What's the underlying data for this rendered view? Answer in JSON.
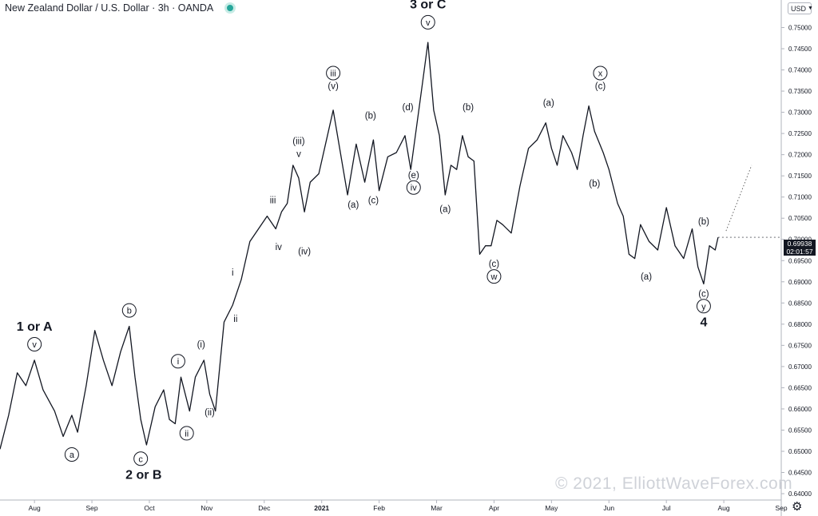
{
  "header": {
    "title": "New Zealand Dollar / U.S. Dollar · 3h · OANDA",
    "status_color": "#26a69a"
  },
  "currency_selector": {
    "value": "USD"
  },
  "price_label": {
    "price": "0.69938",
    "countdown": "02:01:57"
  },
  "settings": {
    "icon": "gear-icon"
  },
  "watermark": "© 2021, ElliottWaveForex.com",
  "chart_data": {
    "type": "line",
    "title": "New Zealand Dollar / U.S. Dollar · 3h · OANDA",
    "xlabel": "",
    "ylabel": "",
    "ylim": [
      0.6385,
      0.7565
    ],
    "xlim": [
      0,
      13.6
    ],
    "grid": false,
    "x_ticks": [
      {
        "label": "Aug",
        "x": 0.6
      },
      {
        "label": "Sep",
        "x": 1.6
      },
      {
        "label": "Oct",
        "x": 2.6
      },
      {
        "label": "Nov",
        "x": 3.6
      },
      {
        "label": "Dec",
        "x": 4.6
      },
      {
        "label": "2021",
        "x": 5.6
      },
      {
        "label": "Feb",
        "x": 6.6
      },
      {
        "label": "Mar",
        "x": 7.6
      },
      {
        "label": "Apr",
        "x": 8.6
      },
      {
        "label": "May",
        "x": 9.6
      },
      {
        "label": "Jun",
        "x": 10.6
      },
      {
        "label": "Jul",
        "x": 11.6
      },
      {
        "label": "Aug",
        "x": 12.6
      },
      {
        "label": "Sep",
        "x": 13.6
      }
    ],
    "y_ticks": [
      "0.64000",
      "0.64500",
      "0.65000",
      "0.65500",
      "0.66000",
      "0.66500",
      "0.67000",
      "0.67500",
      "0.68000",
      "0.68500",
      "0.69000",
      "0.69500",
      "0.70000",
      "0.70500",
      "0.71000",
      "0.71500",
      "0.72000",
      "0.72500",
      "0.73000",
      "0.73500",
      "0.74000",
      "0.74500",
      "0.75000"
    ],
    "series": [
      {
        "color": "#131722",
        "points": [
          [
            0.0,
            0.6505
          ],
          [
            0.15,
            0.6585
          ],
          [
            0.3,
            0.6685
          ],
          [
            0.45,
            0.6655
          ],
          [
            0.6,
            0.6715
          ],
          [
            0.75,
            0.6645
          ],
          [
            0.95,
            0.6595
          ],
          [
            1.1,
            0.6535
          ],
          [
            1.25,
            0.6585
          ],
          [
            1.35,
            0.6545
          ],
          [
            1.5,
            0.6655
          ],
          [
            1.65,
            0.6785
          ],
          [
            1.8,
            0.6715
          ],
          [
            1.95,
            0.6655
          ],
          [
            2.1,
            0.6735
          ],
          [
            2.25,
            0.6795
          ],
          [
            2.35,
            0.6675
          ],
          [
            2.45,
            0.6575
          ],
          [
            2.55,
            0.6515
          ],
          [
            2.7,
            0.6605
          ],
          [
            2.85,
            0.6645
          ],
          [
            2.95,
            0.6575
          ],
          [
            3.05,
            0.6565
          ],
          [
            3.15,
            0.6675
          ],
          [
            3.3,
            0.6595
          ],
          [
            3.4,
            0.6675
          ],
          [
            3.55,
            0.6715
          ],
          [
            3.65,
            0.6635
          ],
          [
            3.75,
            0.6595
          ],
          [
            3.85,
            0.6735
          ],
          [
            3.9,
            0.6805
          ],
          [
            4.05,
            0.6845
          ],
          [
            4.2,
            0.6905
          ],
          [
            4.35,
            0.6995
          ],
          [
            4.5,
            0.7025
          ],
          [
            4.65,
            0.7055
          ],
          [
            4.8,
            0.7025
          ],
          [
            4.9,
            0.7065
          ],
          [
            5.0,
            0.7085
          ],
          [
            5.1,
            0.7175
          ],
          [
            5.2,
            0.7145
          ],
          [
            5.3,
            0.7065
          ],
          [
            5.4,
            0.7135
          ],
          [
            5.55,
            0.7155
          ],
          [
            5.7,
            0.7245
          ],
          [
            5.8,
            0.7305
          ],
          [
            5.9,
            0.7225
          ],
          [
            6.05,
            0.7105
          ],
          [
            6.2,
            0.7225
          ],
          [
            6.35,
            0.7135
          ],
          [
            6.5,
            0.7235
          ],
          [
            6.6,
            0.7115
          ],
          [
            6.75,
            0.7195
          ],
          [
            6.9,
            0.7205
          ],
          [
            7.05,
            0.7245
          ],
          [
            7.15,
            0.7165
          ],
          [
            7.25,
            0.7265
          ],
          [
            7.35,
            0.7365
          ],
          [
            7.45,
            0.7465
          ],
          [
            7.55,
            0.7305
          ],
          [
            7.65,
            0.7245
          ],
          [
            7.75,
            0.7105
          ],
          [
            7.85,
            0.7175
          ],
          [
            7.95,
            0.7165
          ],
          [
            8.05,
            0.7245
          ],
          [
            8.15,
            0.7195
          ],
          [
            8.25,
            0.7185
          ],
          [
            8.35,
            0.6965
          ],
          [
            8.45,
            0.6985
          ],
          [
            8.55,
            0.6985
          ],
          [
            8.65,
            0.7045
          ],
          [
            8.75,
            0.7035
          ],
          [
            8.9,
            0.7015
          ],
          [
            9.05,
            0.7125
          ],
          [
            9.2,
            0.7215
          ],
          [
            9.35,
            0.7235
          ],
          [
            9.5,
            0.7275
          ],
          [
            9.6,
            0.7215
          ],
          [
            9.7,
            0.7175
          ],
          [
            9.8,
            0.7245
          ],
          [
            9.95,
            0.7205
          ],
          [
            10.05,
            0.7165
          ],
          [
            10.15,
            0.7245
          ],
          [
            10.25,
            0.7315
          ],
          [
            10.35,
            0.7255
          ],
          [
            10.5,
            0.7205
          ],
          [
            10.6,
            0.7165
          ],
          [
            10.75,
            0.7085
          ],
          [
            10.85,
            0.7055
          ],
          [
            10.95,
            0.6965
          ],
          [
            11.05,
            0.6955
          ],
          [
            11.15,
            0.7035
          ],
          [
            11.3,
            0.6995
          ],
          [
            11.45,
            0.6975
          ],
          [
            11.6,
            0.7075
          ],
          [
            11.75,
            0.6985
          ],
          [
            11.9,
            0.6955
          ],
          [
            12.05,
            0.7025
          ],
          [
            12.15,
            0.6935
          ],
          [
            12.25,
            0.6895
          ],
          [
            12.35,
            0.6985
          ],
          [
            12.45,
            0.6975
          ],
          [
            12.5,
            0.7005
          ]
        ]
      }
    ],
    "annotations": [
      {
        "text": "1 or A",
        "x": 0.6,
        "y": 0.6785,
        "style": "bold"
      },
      {
        "text": "v",
        "x": 0.6,
        "y": 0.6745,
        "style": "circle"
      },
      {
        "text": "a",
        "x": 1.25,
        "y": 0.6485,
        "style": "circle"
      },
      {
        "text": "b",
        "x": 2.25,
        "y": 0.6825,
        "style": "circle"
      },
      {
        "text": "c",
        "x": 2.45,
        "y": 0.6475,
        "style": "circle"
      },
      {
        "text": "2 or B",
        "x": 2.5,
        "y": 0.6435,
        "style": "bold"
      },
      {
        "text": "i",
        "x": 3.1,
        "y": 0.6705,
        "style": "circle"
      },
      {
        "text": "ii",
        "x": 3.25,
        "y": 0.6535,
        "style": "circle"
      },
      {
        "text": "(i)",
        "x": 3.5,
        "y": 0.6745,
        "style": "plain"
      },
      {
        "text": "(ii)",
        "x": 3.65,
        "y": 0.6585,
        "style": "plain"
      },
      {
        "text": "i",
        "x": 4.05,
        "y": 0.6915,
        "style": "plain"
      },
      {
        "text": "ii",
        "x": 4.1,
        "y": 0.6805,
        "style": "plain"
      },
      {
        "text": "iii",
        "x": 4.75,
        "y": 0.7085,
        "style": "plain"
      },
      {
        "text": "iv",
        "x": 4.85,
        "y": 0.6975,
        "style": "plain"
      },
      {
        "text": "(iii)",
        "x": 5.2,
        "y": 0.7225,
        "style": "plain"
      },
      {
        "text": "v",
        "x": 5.2,
        "y": 0.7195,
        "style": "plain"
      },
      {
        "text": "(iv)",
        "x": 5.3,
        "y": 0.6965,
        "style": "plain"
      },
      {
        "text": "iii",
        "x": 5.8,
        "y": 0.7385,
        "style": "circle"
      },
      {
        "text": "(v)",
        "x": 5.8,
        "y": 0.7355,
        "style": "plain"
      },
      {
        "text": "(a)",
        "x": 6.15,
        "y": 0.7075,
        "style": "plain"
      },
      {
        "text": "(b)",
        "x": 6.45,
        "y": 0.7285,
        "style": "plain"
      },
      {
        "text": "(c)",
        "x": 6.5,
        "y": 0.7085,
        "style": "plain"
      },
      {
        "text": "(d)",
        "x": 7.1,
        "y": 0.7305,
        "style": "plain"
      },
      {
        "text": "(e)",
        "x": 7.2,
        "y": 0.7145,
        "style": "plain"
      },
      {
        "text": "iv",
        "x": 7.2,
        "y": 0.7115,
        "style": "circle"
      },
      {
        "text": "3 or C",
        "x": 7.45,
        "y": 0.7545,
        "style": "bold"
      },
      {
        "text": "v",
        "x": 7.45,
        "y": 0.7505,
        "style": "circle"
      },
      {
        "text": "(a)",
        "x": 7.75,
        "y": 0.7065,
        "style": "plain"
      },
      {
        "text": "(b)",
        "x": 8.15,
        "y": 0.7305,
        "style": "plain"
      },
      {
        "text": "(c)",
        "x": 8.6,
        "y": 0.6935,
        "style": "plain"
      },
      {
        "text": "w",
        "x": 8.6,
        "y": 0.6905,
        "style": "circle"
      },
      {
        "text": "(a)",
        "x": 9.55,
        "y": 0.7315,
        "style": "plain"
      },
      {
        "text": "(b)",
        "x": 10.35,
        "y": 0.7125,
        "style": "plain"
      },
      {
        "text": "x",
        "x": 10.45,
        "y": 0.7385,
        "style": "circle"
      },
      {
        "text": "(c)",
        "x": 10.45,
        "y": 0.7355,
        "style": "plain"
      },
      {
        "text": "(a)",
        "x": 11.25,
        "y": 0.6905,
        "style": "plain"
      },
      {
        "text": "(b)",
        "x": 12.25,
        "y": 0.7035,
        "style": "plain"
      },
      {
        "text": "(c)",
        "x": 12.25,
        "y": 0.6865,
        "style": "plain"
      },
      {
        "text": "y",
        "x": 12.25,
        "y": 0.6835,
        "style": "circle"
      },
      {
        "text": "4",
        "x": 12.25,
        "y": 0.6795,
        "style": "bold"
      }
    ]
  }
}
